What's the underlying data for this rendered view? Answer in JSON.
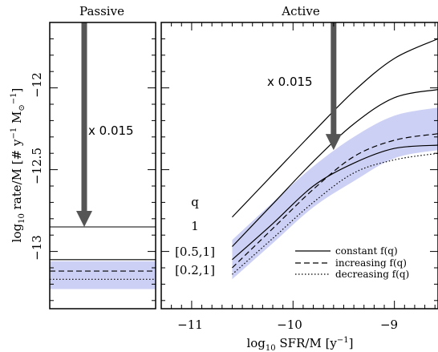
{
  "chart_data": [
    {
      "type": "line",
      "title": "Passive",
      "ylabel": "log10 rate/M [# y^-1 M_sun^-1]",
      "ylim": [
        -13.35,
        -11.6
      ],
      "yticks": [
        -13,
        -12.5,
        -12
      ],
      "shaded_band": {
        "y_low": -13.23,
        "y_high": -13.06,
        "color": "#cdd0f5"
      },
      "annotation": "x 0.015",
      "arrow": {
        "y_from": -11.6,
        "y_to": -12.85,
        "color": "#555555"
      },
      "series": [
        {
          "style": "solid",
          "y": -12.85
        },
        {
          "style": "solid",
          "y": -13.05
        },
        {
          "style": "dashed",
          "y": -13.12
        },
        {
          "style": "dotted",
          "y": -13.17
        }
      ]
    },
    {
      "type": "line",
      "title": "Active",
      "xlabel": "log10 SFR/M [y^-1]",
      "xlim": [
        -11.3,
        -8.57
      ],
      "ylim": [
        -13.35,
        -11.6
      ],
      "xticks": [
        -11,
        -10,
        -9
      ],
      "annotation": "x 0.015",
      "arrow": {
        "x": -9.6,
        "y_from": -11.6,
        "y_to": -12.38,
        "color": "#555555"
      },
      "q_labels": {
        "header": "q",
        "rows": [
          "1",
          "[0.5,1]",
          "[0.2,1]"
        ]
      },
      "band": {
        "color": "#cdd0f5",
        "x": [
          -10.6,
          -10.2,
          -9.8,
          -9.4,
          -9.0,
          -8.57
        ],
        "y_low": [
          -13.17,
          -12.95,
          -12.73,
          -12.57,
          -12.43,
          -12.38
        ],
        "y_high": [
          -12.93,
          -12.7,
          -12.48,
          -12.3,
          -12.17,
          -12.12
        ]
      },
      "series": [
        {
          "name": "",
          "style": "solid",
          "x": [
            -10.6,
            -10.2,
            -9.8,
            -9.4,
            -9.0,
            -8.57
          ],
          "y": [
            -12.79,
            -12.53,
            -12.27,
            -12.02,
            -11.82,
            -11.7
          ]
        },
        {
          "name": "",
          "style": "solid",
          "x": [
            -10.6,
            -10.2,
            -9.8,
            -9.4,
            -9.0,
            -8.57
          ],
          "y": [
            -12.97,
            -12.71,
            -12.45,
            -12.22,
            -12.06,
            -12.01
          ]
        },
        {
          "name": "constant f(q)",
          "style": "solid",
          "x": [
            -10.6,
            -10.2,
            -9.8,
            -9.4,
            -9.0,
            -8.57
          ],
          "y": [
            -13.05,
            -12.83,
            -12.6,
            -12.46,
            -12.37,
            -12.35
          ]
        },
        {
          "name": "increasing f(q)",
          "style": "dashed",
          "x": [
            -10.6,
            -10.2,
            -9.8,
            -9.4,
            -9.0,
            -8.57
          ],
          "y": [
            -13.1,
            -12.86,
            -12.62,
            -12.42,
            -12.32,
            -12.28
          ]
        },
        {
          "name": "decreasing f(q)",
          "style": "dotted",
          "x": [
            -10.6,
            -10.2,
            -9.8,
            -9.4,
            -9.0,
            -8.57
          ],
          "y": [
            -13.14,
            -12.92,
            -12.7,
            -12.52,
            -12.44,
            -12.4
          ]
        }
      ]
    }
  ],
  "labels": {
    "passive_title": "Passive",
    "active_title": "Active",
    "ylabel_main": "log",
    "ylabel_sub": "10",
    "ylabel_rest": " rate/M [# y",
    "ylabel_sup1": "−1",
    "ylabel_m": " M",
    "ylabel_sun": "⊙",
    "ylabel_sup2": "−1",
    "ylabel_end": "]",
    "xlabel_main": "log",
    "xlabel_sub": "10",
    "xlabel_rest": " SFR/M [y",
    "xlabel_sup": "−1",
    "xlabel_end": "]",
    "ytick_labels": [
      "−13",
      "−12.5",
      "−12"
    ],
    "xtick_labels": [
      "−11",
      "−10",
      "−9"
    ],
    "anno_passive": "x 0.015",
    "anno_active": "x 0.015",
    "q_header": "q",
    "q_row1": "1",
    "q_row2": "[0.5,1]",
    "q_row3": "[0.2,1]",
    "legend1": "constant f(q)",
    "legend2": "increasing f(q)",
    "legend3": "decreasing f(q)"
  }
}
